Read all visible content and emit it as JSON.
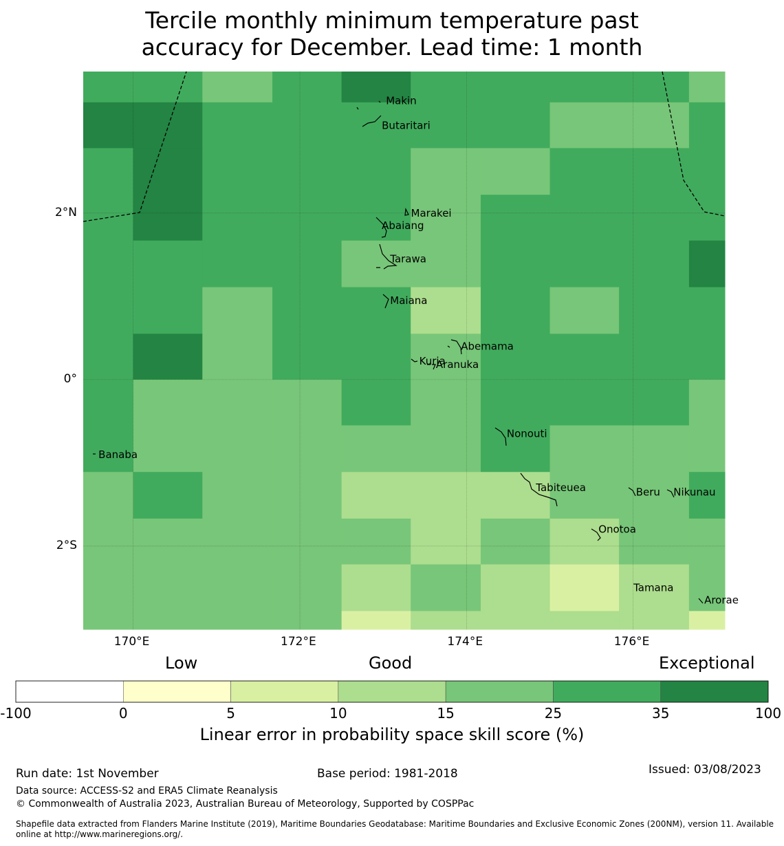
{
  "title": {
    "line1": "Tercile monthly minimum temperature past",
    "line2": "accuracy for December. Lead time: 1 month"
  },
  "map": {
    "lon_range": [
      169.4,
      177.1
    ],
    "lat_range": [
      -3.0,
      3.7
    ],
    "cell_lon_edges": [
      169.4,
      170.0,
      170.83,
      171.67,
      172.5,
      173.33,
      174.17,
      175.0,
      175.83,
      176.67,
      177.1
    ],
    "cell_lat_edges": [
      3.7,
      3.33,
      2.78,
      2.22,
      1.67,
      1.11,
      0.55,
      0.0,
      -0.55,
      -1.11,
      -1.67,
      -2.22,
      -2.78,
      -3.0
    ],
    "grid_classes": [
      [
        5,
        5,
        4,
        5,
        6,
        5,
        5,
        5,
        5,
        4
      ],
      [
        6,
        6,
        5,
        5,
        5,
        5,
        5,
        4,
        4,
        5
      ],
      [
        5,
        6,
        5,
        5,
        5,
        4,
        4,
        5,
        5,
        5
      ],
      [
        5,
        6,
        5,
        5,
        5,
        4,
        5,
        5,
        5,
        5
      ],
      [
        5,
        5,
        5,
        5,
        4,
        4,
        5,
        5,
        5,
        6
      ],
      [
        5,
        5,
        4,
        5,
        5,
        3,
        5,
        4,
        5,
        5
      ],
      [
        5,
        6,
        4,
        5,
        5,
        4,
        5,
        5,
        5,
        5
      ],
      [
        5,
        4,
        4,
        4,
        5,
        4,
        5,
        5,
        5,
        4
      ],
      [
        5,
        4,
        4,
        4,
        4,
        4,
        5,
        4,
        4,
        4
      ],
      [
        4,
        5,
        4,
        4,
        3,
        3,
        3,
        4,
        4,
        5
      ],
      [
        4,
        4,
        4,
        4,
        4,
        3,
        4,
        3,
        4,
        4
      ],
      [
        4,
        4,
        4,
        4,
        3,
        4,
        3,
        2,
        3,
        4
      ],
      [
        4,
        4,
        4,
        4,
        2,
        3,
        3,
        3,
        3,
        2
      ]
    ],
    "x_ticks": [
      {
        "lon": 170,
        "label": "170°E"
      },
      {
        "lon": 172,
        "label": "172°E"
      },
      {
        "lon": 174,
        "label": "174°E"
      },
      {
        "lon": 176,
        "label": "176°E"
      }
    ],
    "y_ticks": [
      {
        "lat": 2,
        "label": "2°N"
      },
      {
        "lat": 0,
        "label": "0°"
      },
      {
        "lat": -2,
        "label": "2°S"
      }
    ],
    "islands": [
      {
        "name": "Makin",
        "lon": 173.0,
        "lat": 3.35
      },
      {
        "name": "Butaritari",
        "lon": 172.95,
        "lat": 3.05
      },
      {
        "name": "Marakei",
        "lon": 173.3,
        "lat": 2.0
      },
      {
        "name": "Abaiang",
        "lon": 172.95,
        "lat": 1.85
      },
      {
        "name": "Tarawa",
        "lon": 173.05,
        "lat": 1.45
      },
      {
        "name": "Maiana",
        "lon": 173.05,
        "lat": 0.95
      },
      {
        "name": "Abemama",
        "lon": 173.9,
        "lat": 0.4
      },
      {
        "name": "Kuria",
        "lon": 173.4,
        "lat": 0.22
      },
      {
        "name": "Aranuka",
        "lon": 173.6,
        "lat": 0.18
      },
      {
        "name": "Nonouti",
        "lon": 174.45,
        "lat": -0.65
      },
      {
        "name": "Banaba",
        "lon": 169.55,
        "lat": -0.9
      },
      {
        "name": "Tabiteuea",
        "lon": 174.8,
        "lat": -1.3
      },
      {
        "name": "Beru",
        "lon": 176.0,
        "lat": -1.35
      },
      {
        "name": "Nikunau",
        "lon": 176.45,
        "lat": -1.35
      },
      {
        "name": "Onotoa",
        "lon": 175.55,
        "lat": -1.8
      },
      {
        "name": "Tamana",
        "lon": 175.97,
        "lat": -2.5
      },
      {
        "name": "Arorae",
        "lon": 176.82,
        "lat": -2.65
      }
    ]
  },
  "colorbar": {
    "categories": [
      "Low",
      "Good",
      "Exceptional"
    ],
    "bins": [
      {
        "from": -100,
        "to": 0,
        "color": "#ffffff"
      },
      {
        "from": 0,
        "to": 5,
        "color": "#ffffcc"
      },
      {
        "from": 5,
        "to": 10,
        "color": "#d9f0a3"
      },
      {
        "from": 10,
        "to": 15,
        "color": "#addd8e"
      },
      {
        "from": 15,
        "to": 25,
        "color": "#78c679"
      },
      {
        "from": 25,
        "to": 35,
        "color": "#41ab5d"
      },
      {
        "from": 35,
        "to": 100,
        "color": "#238443"
      }
    ],
    "tick_labels": [
      "-100",
      "0",
      "5",
      "10",
      "15",
      "25",
      "35",
      "100"
    ],
    "label": "Linear error in probability space skill score (%)"
  },
  "footer": {
    "run_date": "Run date: 1st November",
    "base_period": "Base period: 1981-2018",
    "issued": "Issued: 03/08/2023",
    "data_source": "Data source: ACCESS-S2 and ERA5 Climate Reanalysis",
    "copyright": "© Commonwealth of Australia 2023, Australian Bureau of Meteorology, Supported by COSPPac",
    "shapefile": "Shapefile data extracted from Flanders Marine Institute (2019), Maritime Boundaries Geodatabase: Maritime Boundaries and Exclusive Economic Zones (200NM), version 11. Available online at http://www.marineregions.org/."
  }
}
